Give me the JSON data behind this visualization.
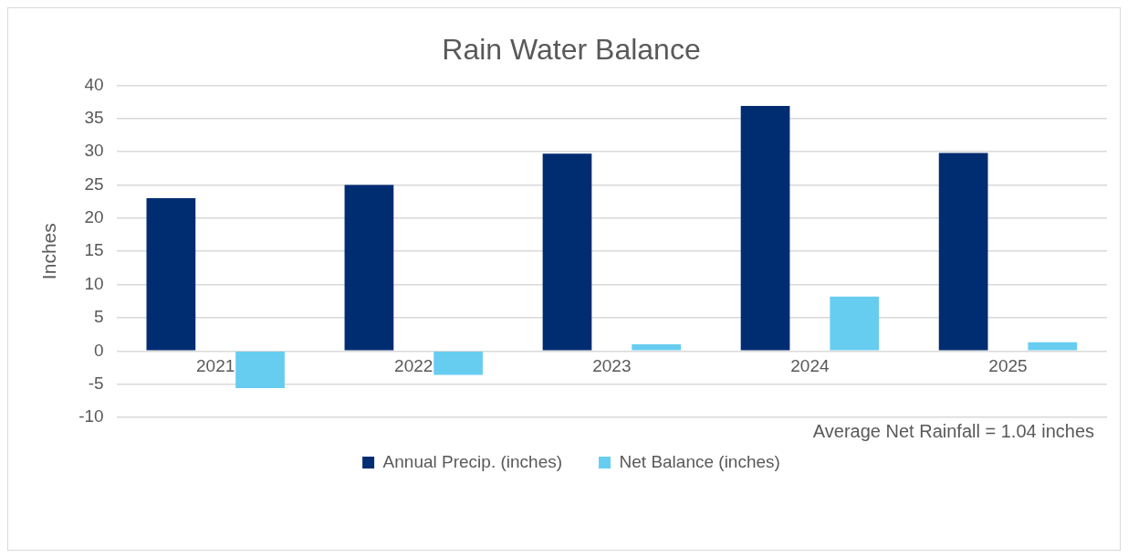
{
  "chart_data": {
    "type": "bar",
    "title": "Rain Water Balance",
    "ylabel": "Inches",
    "categories": [
      "2021",
      "2022",
      "2023",
      "2024",
      "2025"
    ],
    "series": [
      {
        "name": "Annual Precip. (inches)",
        "color": "#002d72",
        "values": [
          23.0,
          25.0,
          29.7,
          36.9,
          29.8
        ]
      },
      {
        "name": "Net Balance (inches)",
        "color": "#67cdf0",
        "values": [
          -5.6,
          -3.6,
          1.0,
          8.2,
          1.3
        ]
      }
    ],
    "ylim": [
      -10,
      40
    ],
    "yticks": [
      -10,
      -5,
      0,
      5,
      10,
      15,
      20,
      25,
      30,
      35,
      40
    ],
    "grid": "y",
    "legend": "bottom",
    "annotations": [
      "Average Net Rainfall = 1.04 inches"
    ]
  }
}
